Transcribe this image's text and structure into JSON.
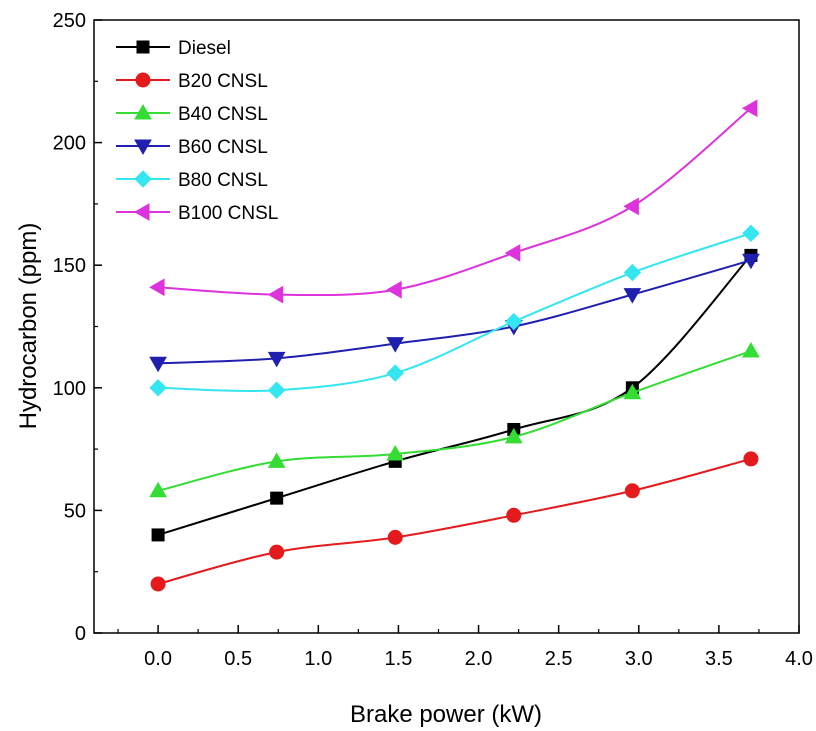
{
  "chart_data": {
    "type": "line",
    "xlabel": "Brake power (kW)",
    "ylabel": "Hydrocarbon (ppm)",
    "xlim": [
      -0.4,
      4.0
    ],
    "ylim": [
      0,
      250
    ],
    "xticks": [
      "0.0",
      "0.5",
      "1.0",
      "1.5",
      "2.0",
      "2.5",
      "3.0",
      "3.5",
      "4.0"
    ],
    "yticks": [
      "0",
      "50",
      "100",
      "150",
      "200",
      "250"
    ],
    "legend_position": "top-left",
    "grid": false,
    "x": [
      0.0,
      0.74,
      1.48,
      2.22,
      2.96,
      3.7
    ],
    "series": [
      {
        "name": "Diesel",
        "color": "#000000",
        "marker": "square",
        "values": [
          40,
          55,
          70,
          83,
          100,
          154
        ]
      },
      {
        "name": "B20 CNSL",
        "color": "#e41a1c",
        "marker": "circle",
        "values": [
          20,
          33,
          39,
          48,
          58,
          71
        ]
      },
      {
        "name": "B40 CNSL",
        "color": "#33dd33",
        "marker": "triangle-up",
        "values": [
          58,
          70,
          73,
          80,
          98,
          115
        ]
      },
      {
        "name": "B60 CNSL",
        "color": "#2020b0",
        "marker": "triangle-down",
        "values": [
          110,
          112,
          118,
          125,
          138,
          152
        ]
      },
      {
        "name": "B80 CNSL",
        "color": "#33e6f0",
        "marker": "diamond",
        "values": [
          100,
          99,
          106,
          127,
          147,
          163
        ]
      },
      {
        "name": "B100 CNSL",
        "color": "#dd33dd",
        "marker": "triangle-left",
        "values": [
          141,
          138,
          140,
          155,
          174,
          214
        ]
      }
    ]
  }
}
